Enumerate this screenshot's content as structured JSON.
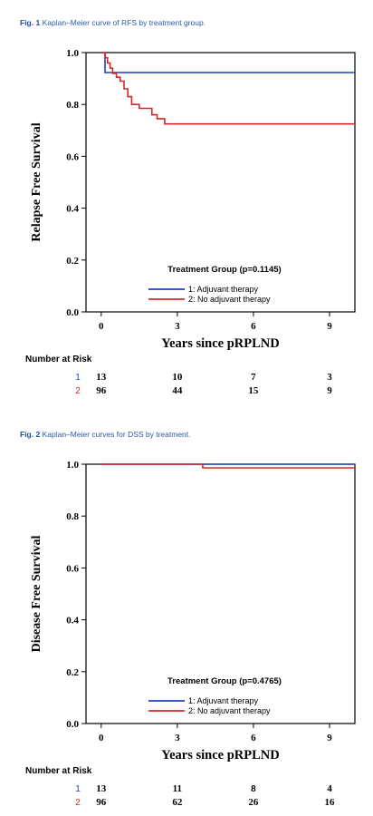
{
  "figures": [
    {
      "caption": {
        "label": "Fig. 1",
        "text": "Kaplan–Meier curve of RFS by treatment group."
      },
      "legend": {
        "title": "Treatment Group (p=0.1145)"
      },
      "risk_table": {
        "header": "Number at Risk",
        "rows": [
          {
            "group": "1",
            "color": "#1f3fbf",
            "counts": [
              "13",
              "10",
              "7",
              "3"
            ]
          },
          {
            "group": "2",
            "color": "#d62828",
            "counts": [
              "96",
              "44",
              "15",
              "9"
            ]
          }
        ]
      }
    },
    {
      "caption": {
        "label": "Fig. 2",
        "text": "Kaplan–Meier curves for DSS by treatment."
      },
      "legend": {
        "title": "Treatment Group (p=0.4765)"
      },
      "risk_table": {
        "header": "Number at Risk",
        "rows": [
          {
            "group": "1",
            "color": "#1f3fbf",
            "counts": [
              "13",
              "11",
              "8",
              "4"
            ]
          },
          {
            "group": "2",
            "color": "#d62828",
            "counts": [
              "96",
              "62",
              "26",
              "16"
            ]
          }
        ]
      }
    }
  ],
  "chart_data": [
    {
      "type": "line",
      "title": "",
      "xlabel": "Years since pRPLND",
      "ylabel": "Relapse Free Survival",
      "xlim": [
        -0.6,
        10
      ],
      "ylim": [
        0,
        1
      ],
      "xticks": [
        0,
        3,
        6,
        9
      ],
      "yticks": [
        0.0,
        0.2,
        0.4,
        0.6,
        0.8,
        1.0
      ],
      "ytick_labels": [
        "0.0",
        "0.2",
        "0.4",
        "0.6",
        "0.8",
        "1.0"
      ],
      "xtick_labels": [
        "0",
        "3",
        "6",
        "9"
      ],
      "step": true,
      "legend_position": "lower-right",
      "series": [
        {
          "name": "1: Adjuvant therapy",
          "color": "#1f3fbf",
          "x": [
            0,
            0.15,
            10
          ],
          "y": [
            1.0,
            0.923,
            0.923
          ]
        },
        {
          "name": "2: No adjuvant therapy",
          "color": "#d62828",
          "x": [
            0,
            0.15,
            0.25,
            0.35,
            0.45,
            0.6,
            0.75,
            0.9,
            1.05,
            1.2,
            1.5,
            1.8,
            2.0,
            2.2,
            2.5,
            10
          ],
          "y": [
            1.0,
            0.98,
            0.96,
            0.94,
            0.92,
            0.905,
            0.89,
            0.86,
            0.83,
            0.8,
            0.785,
            0.785,
            0.76,
            0.745,
            0.725,
            0.725
          ]
        }
      ]
    },
    {
      "type": "line",
      "title": "",
      "xlabel": "Years since pRPLND",
      "ylabel": "Disease Free Survival",
      "xlim": [
        -0.6,
        10
      ],
      "ylim": [
        0,
        1
      ],
      "xticks": [
        0,
        3,
        6,
        9
      ],
      "yticks": [
        0.0,
        0.2,
        0.4,
        0.6,
        0.8,
        1.0
      ],
      "ytick_labels": [
        "0.0",
        "0.2",
        "0.4",
        "0.6",
        "0.8",
        "1.0"
      ],
      "xtick_labels": [
        "0",
        "3",
        "6",
        "9"
      ],
      "step": true,
      "legend_position": "lower-right",
      "series": [
        {
          "name": "1: Adjuvant therapy",
          "color": "#1f3fbf",
          "x": [
            0,
            10
          ],
          "y": [
            1.0,
            1.0
          ]
        },
        {
          "name": "2: No adjuvant therapy",
          "color": "#d62828",
          "x": [
            0,
            4.0,
            10
          ],
          "y": [
            1.0,
            0.986,
            0.986
          ]
        }
      ]
    }
  ]
}
